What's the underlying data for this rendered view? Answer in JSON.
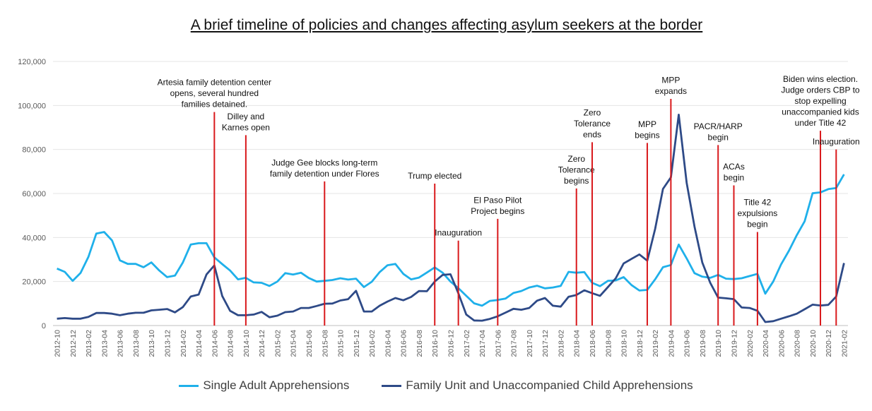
{
  "chart_data": {
    "type": "line",
    "title": "A brief timeline of policies and changes affecting asylum seekers at the border",
    "ylim": [
      0,
      120000
    ],
    "yticks": [
      "0",
      "20,000",
      "40,000",
      "60,000",
      "80,000",
      "100,000",
      "120,000"
    ],
    "x_start": "2012-10",
    "x_end": "2021-02",
    "x_tick_labels": [
      "2012-10",
      "2012-12",
      "2013-02",
      "2013-04",
      "2013-06",
      "2013-08",
      "2013-10",
      "2013-12",
      "2014-02",
      "2014-04",
      "2014-06",
      "2014-08",
      "2014-10",
      "2014-12",
      "2015-02",
      "2015-04",
      "2015-06",
      "2015-08",
      "2015-10",
      "2015-12",
      "2016-02",
      "2016-04",
      "2016-06",
      "2016-08",
      "2016-10",
      "2016-12",
      "2017-02",
      "2017-04",
      "2017-06",
      "2017-08",
      "2017-10",
      "2017-12",
      "2018-02",
      "2018-04",
      "2018-06",
      "2018-08",
      "2018-10",
      "2018-12",
      "2019-02",
      "2019-04",
      "2019-06",
      "2019-08",
      "2019-10",
      "2019-12",
      "2020-02",
      "2020-04",
      "2020-06",
      "2020-08",
      "2020-10",
      "2020-12",
      "2021-02"
    ],
    "series": [
      {
        "name": "Single Adult Apprehensions",
        "color": "#1fb0ea",
        "values": [
          25900,
          24400,
          20300,
          23900,
          31200,
          41800,
          42500,
          38700,
          29600,
          28000,
          28000,
          26500,
          28700,
          25000,
          22000,
          22700,
          28700,
          36800,
          37400,
          37400,
          31000,
          27900,
          25000,
          21000,
          21700,
          19600,
          19400,
          18000,
          20000,
          23800,
          23200,
          24000,
          21600,
          20000,
          20300,
          20700,
          21500,
          20900,
          21300,
          17500,
          19900,
          24300,
          27400,
          28000,
          23500,
          21000,
          21800,
          24100,
          26400,
          24000,
          20000,
          17000,
          13500,
          10100,
          9000,
          11200,
          11600,
          12300,
          14800,
          15700,
          17300,
          18100,
          16900,
          17300,
          18000,
          24400,
          24000,
          24300,
          19400,
          17900,
          20300,
          20500,
          22000,
          18400,
          15900,
          16200,
          21000,
          26500,
          27500,
          36800,
          30500,
          23800,
          22200,
          21700,
          23000,
          21300,
          21100,
          21500,
          22500,
          23500,
          14500,
          20000,
          27800,
          34000,
          41100,
          47400,
          60100,
          60500,
          62000,
          62500,
          68700
        ]
      },
      {
        "name": "Family Unit and Unaccompanied Child Apprehensions",
        "color": "#2e4a87",
        "values": [
          3100,
          3400,
          3100,
          3100,
          3900,
          5700,
          5700,
          5400,
          4700,
          5400,
          5800,
          5800,
          6900,
          7200,
          7500,
          6000,
          8400,
          13200,
          14100,
          23200,
          27300,
          13400,
          6700,
          4700,
          4700,
          5000,
          6200,
          3800,
          4500,
          6100,
          6400,
          8000,
          8000,
          8900,
          9900,
          10000,
          11400,
          12000,
          15800,
          6400,
          6400,
          9000,
          10900,
          12500,
          11500,
          13000,
          15700,
          15600,
          20000,
          23000,
          23300,
          14700,
          5000,
          2300,
          2200,
          3000,
          4200,
          5900,
          7600,
          7200,
          8000,
          11300,
          12500,
          9000,
          8600,
          13100,
          13900,
          16000,
          14700,
          13500,
          17500,
          21500,
          28200,
          30300,
          32300,
          29500,
          43900,
          62100,
          67300,
          95800,
          64900,
          45000,
          28600,
          19400,
          12700,
          12400,
          12000,
          8200,
          8000,
          6700,
          1600,
          2000,
          3100,
          4200,
          5400,
          7400,
          9500,
          9100,
          9400,
          13200,
          28400
        ]
      }
    ],
    "annotations": [
      {
        "x": "2014-06",
        "peak": 97000,
        "lines": [
          "Artesia family detention center",
          "opens, several hundred",
          "families detained."
        ]
      },
      {
        "x": "2014-10",
        "peak": 86500,
        "lines": [
          "Dilley and",
          "Karnes open"
        ]
      },
      {
        "x": "2015-08",
        "peak": 65500,
        "lines": [
          "Judge Gee blocks long-term",
          "family detention under Flores"
        ]
      },
      {
        "x": "2016-10",
        "peak": 64500,
        "lines": [
          "Trump elected"
        ]
      },
      {
        "x": "2017-01",
        "peak": 38600,
        "lines": [
          "Inauguration"
        ]
      },
      {
        "x": "2017-06",
        "peak": 48500,
        "lines": [
          "El Paso Pilot",
          "Project begins"
        ]
      },
      {
        "x": "2018-04",
        "peak": 62300,
        "lines": [
          "Zero",
          "Tolerance",
          "begins"
        ]
      },
      {
        "x": "2018-06",
        "peak": 83300,
        "lines": [
          "Zero",
          "Tolerance",
          "ends"
        ]
      },
      {
        "x": "2019-01",
        "peak": 83000,
        "lines": [
          "MPP",
          "begins"
        ]
      },
      {
        "x": "2019-04",
        "peak": 103000,
        "lines": [
          "MPP",
          "expands"
        ]
      },
      {
        "x": "2019-10",
        "peak": 82000,
        "lines": [
          "PACR/HARP",
          "begin"
        ]
      },
      {
        "x": "2019-12",
        "peak": 63700,
        "lines": [
          "ACAs",
          "begin"
        ]
      },
      {
        "x": "2020-03",
        "peak": 42500,
        "lines": [
          "Title 42",
          "expulsions",
          "begin"
        ]
      },
      {
        "x": "2020-11",
        "peak": 88500,
        "lines": [
          "Biden wins election.",
          "Judge orders CBP to",
          "stop expelling",
          "unaccompanied kids",
          "under Title 42"
        ]
      },
      {
        "x": "2021-01",
        "peak": 80000,
        "lines": [
          "Inauguration"
        ]
      }
    ]
  }
}
